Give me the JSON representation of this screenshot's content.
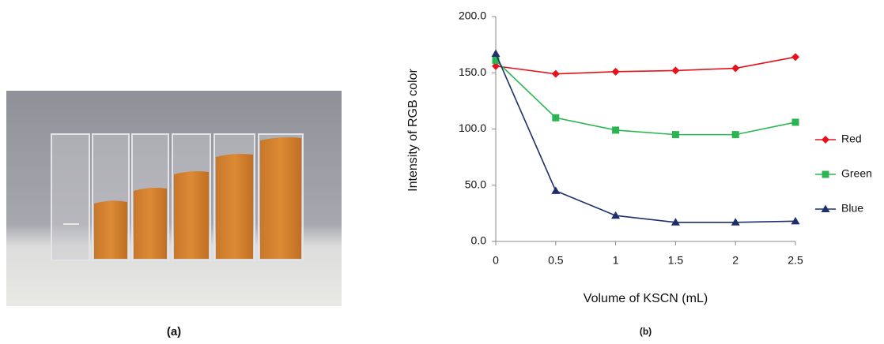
{
  "photo_label": "(a)",
  "chart_data": {
    "type": "line",
    "label": "(b)",
    "x_label": "Volume of KSCN (mL)",
    "y_label": "Intensity of RGB color",
    "x": [
      0,
      0.5,
      1,
      1.5,
      2,
      2.5
    ],
    "series": [
      {
        "name": "Red",
        "color": "#e8101a",
        "marker": "diamond",
        "values": [
          156,
          149,
          151,
          152,
          154,
          164
        ]
      },
      {
        "name": "Green",
        "color": "#2bb552",
        "marker": "square",
        "values": [
          161,
          110,
          99,
          95,
          95,
          106
        ]
      },
      {
        "name": "Blue",
        "color": "#1f2f6b",
        "marker": "triangle",
        "values": [
          167,
          45,
          23,
          17,
          17,
          18
        ]
      }
    ],
    "xlim": [
      0,
      2.5
    ],
    "xticks": [
      0,
      0.5,
      1,
      1.5,
      2,
      2.5
    ],
    "ylim": [
      0,
      200
    ],
    "yticks": [
      {
        "value": 0,
        "label": "0.0"
      },
      {
        "value": 50,
        "label": "50.0"
      },
      {
        "value": 100,
        "label": "100.0"
      },
      {
        "value": 150,
        "label": "150.0"
      },
      {
        "value": 200,
        "label": "200.0"
      }
    ],
    "legend": "right"
  }
}
